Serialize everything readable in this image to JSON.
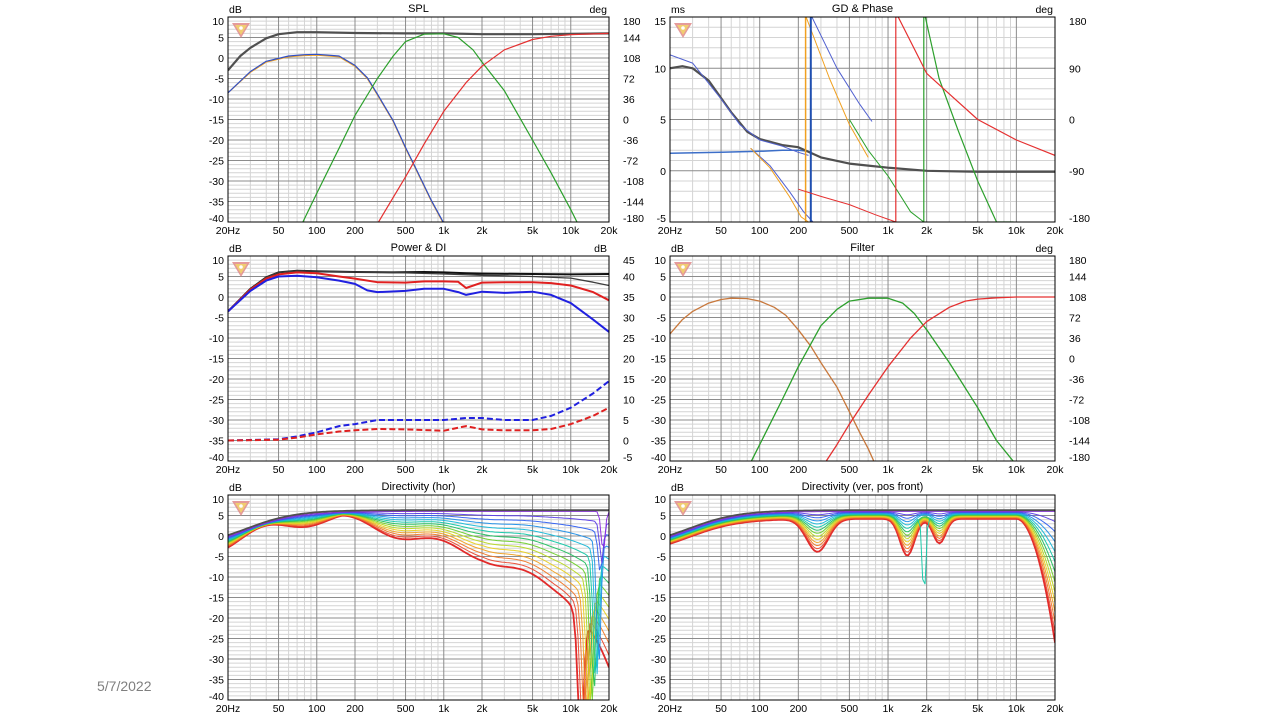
{
  "footer": {
    "date": "5/7/2022"
  },
  "colors": {
    "grid_major": "#8c8c8c",
    "grid_minor": "#d4d4d4",
    "frame": "#000000",
    "logo_red": "#e08a8a",
    "logo_yellow": "#f2d36b"
  },
  "x_ticks": [
    "20Hz",
    "50",
    "100",
    "200",
    "500",
    "1k",
    "2k",
    "5k",
    "10k",
    "20k"
  ],
  "chart_data": [
    {
      "id": "spl",
      "type": "line",
      "title": "SPL",
      "y_unit": "dB",
      "y2_unit": "deg",
      "xlim": [
        20,
        20000
      ],
      "xscale": "log",
      "ylim": [
        -40,
        10
      ],
      "y2lim": [
        -180,
        180
      ],
      "grid": true,
      "y_ticks": [
        "10",
        "5",
        "0",
        "-5",
        "-10",
        "-15",
        "-20",
        "-25",
        "-30",
        "-35",
        "-40"
      ],
      "y2_ticks": [
        "180",
        "144",
        "108",
        "72",
        "36",
        "0",
        "-36",
        "-72",
        "-108",
        "-144",
        "-180"
      ],
      "series": [
        {
          "color": "#505050",
          "width": 2.2,
          "x": [
            20,
            25,
            30,
            40,
            50,
            70,
            100,
            200,
            500,
            1000,
            2000,
            5000,
            10000,
            20000
          ],
          "y": [
            -3,
            0.5,
            2.5,
            4.8,
            5.8,
            6.3,
            6.3,
            6.1,
            6.0,
            6.0,
            5.8,
            5.8,
            5.9,
            6.0
          ]
        },
        {
          "color": "#f0a020",
          "width": 1.2,
          "x": [
            20,
            30,
            40,
            60,
            80,
            100,
            150,
            200,
            250,
            300,
            400,
            500,
            600,
            800,
            1000,
            1100
          ],
          "y": [
            -8.5,
            -3.5,
            -1,
            0.3,
            0.6,
            0.7,
            0.3,
            -2,
            -5,
            -9,
            -15.5,
            -22,
            -27,
            -35,
            -40.5,
            -43
          ]
        },
        {
          "color": "#3050c8",
          "width": 1.2,
          "x": [
            20,
            30,
            40,
            60,
            80,
            100,
            150,
            200,
            250,
            300,
            400,
            500,
            600,
            800,
            1000,
            1100
          ],
          "y": [
            -8.5,
            -3.3,
            -0.8,
            0.5,
            0.8,
            0.9,
            0.5,
            -1.8,
            -4.8,
            -8.8,
            -15.3,
            -21.8,
            -26.8,
            -34.8,
            -40.3,
            -43
          ]
        },
        {
          "color": "#2ca02c",
          "width": 1.2,
          "x": [
            75,
            100,
            150,
            200,
            300,
            400,
            500,
            700,
            1000,
            1300,
            1700,
            2000,
            3000,
            5000,
            7000,
            10000,
            13000
          ],
          "y": [
            -41,
            -33,
            -22,
            -14,
            -5,
            0.5,
            4,
            5.8,
            5.9,
            5,
            2,
            -1,
            -8,
            -20,
            -28,
            -37,
            -44
          ]
        },
        {
          "color": "#e53030",
          "width": 1.2,
          "x": [
            280,
            400,
            500,
            700,
            1000,
            1500,
            2000,
            3000,
            5000,
            7000,
            10000,
            20000
          ],
          "y": [
            -42,
            -34,
            -29,
            -21,
            -13,
            -6,
            -2,
            2,
            4.5,
            5.3,
            5.7,
            6
          ]
        }
      ]
    },
    {
      "id": "gd",
      "type": "line",
      "title": "GD & Phase",
      "y_unit": "ms",
      "y2_unit": "deg",
      "xlim": [
        20,
        20000
      ],
      "xscale": "log",
      "ylim": [
        -5,
        15
      ],
      "y2lim": [
        -180,
        180
      ],
      "grid": true,
      "y_ticks": [
        "15",
        "10",
        "5",
        "0",
        "-5"
      ],
      "y2_ticks": [
        "180",
        "90",
        "0",
        "-90",
        "-180"
      ],
      "series": [
        {
          "color": "#3c6ec8",
          "width": 1.5,
          "x": [
            20,
            50,
            100,
            150,
            200,
            240
          ],
          "y": [
            1.7,
            1.8,
            1.9,
            2.0,
            2.0,
            1.9
          ]
        },
        {
          "color": "#505050",
          "width": 2.2,
          "x": [
            20,
            25,
            30,
            40,
            60,
            80,
            100,
            150,
            200,
            300,
            500,
            700,
            1000,
            2000,
            5000,
            10000,
            20000
          ],
          "y": [
            10,
            10.2,
            10,
            8.8,
            5.7,
            3.8,
            3.1,
            2.5,
            2.3,
            1.3,
            0.7,
            0.5,
            0.3,
            0,
            -0.1,
            -0.1,
            -0.1
          ]
        },
        {
          "color": "#5060d0",
          "width": 1.0,
          "x": [
            20,
            30,
            50,
            70,
            100,
            150,
            200,
            240
          ],
          "y": [
            11.3,
            10.5,
            7,
            4.5,
            3,
            2.4,
            1.8,
            1.5
          ]
        },
        {
          "color": "#5060d0",
          "width": 1.0,
          "x": [
            85,
            120,
            170,
            220,
            260
          ],
          "y": [
            2.2,
            0.5,
            -2,
            -4,
            -5
          ]
        },
        {
          "color": "#5060d0",
          "width": 1.0,
          "x": [
            255,
            400,
            600,
            750
          ],
          "y": [
            15,
            10,
            6.5,
            4.8
          ]
        },
        {
          "color": "#f0a020",
          "width": 1.0,
          "x": [
            85,
            120,
            170,
            210,
            240
          ],
          "y": [
            2.2,
            0.3,
            -2.5,
            -4.5,
            -5
          ]
        },
        {
          "color": "#f0a020",
          "width": 1.0,
          "x": [
            230,
            350,
            500,
            700
          ],
          "y": [
            15,
            9,
            4.5,
            1.3
          ]
        },
        {
          "color": "#1f4fb0",
          "width": 2.0,
          "x": [
            250,
            250,
            258
          ],
          "y": [
            -5,
            15,
            15
          ]
        },
        {
          "color": "#f0a020",
          "width": 1.5,
          "x": [
            228,
            228
          ],
          "y": [
            -5,
            15
          ]
        },
        {
          "color": "#2ca02c",
          "width": 1.2,
          "x": [
            1900,
            1900,
            1950,
            2500,
            3500,
            5000,
            7000,
            9500
          ],
          "y": [
            -5,
            15,
            15,
            9,
            4,
            -1,
            -5,
            -5
          ]
        },
        {
          "color": "#2ca02c",
          "width": 1.0,
          "x": [
            500,
            700,
            1000,
            1500,
            1900
          ],
          "y": [
            5,
            2,
            -0.5,
            -4,
            -5
          ]
        },
        {
          "color": "#e53030",
          "width": 1.2,
          "x": [
            1150,
            1150,
            1200,
            2000,
            3000,
            5000,
            10000,
            20000
          ],
          "y": [
            -5,
            15,
            15,
            9.5,
            7.5,
            5,
            3,
            1.5
          ]
        },
        {
          "color": "#e53030",
          "width": 1.0,
          "x": [
            200,
            300,
            500,
            800,
            1150
          ],
          "y": [
            -1.8,
            -2.5,
            -3.3,
            -4.3,
            -5
          ]
        }
      ]
    },
    {
      "id": "power",
      "type": "line",
      "title": "Power & DI",
      "y_unit": "dB",
      "y2_unit": "dB",
      "xlim": [
        20,
        20000
      ],
      "xscale": "log",
      "ylim": [
        -40,
        10
      ],
      "y2lim": [
        -5,
        45
      ],
      "grid": true,
      "y_ticks": [
        "10",
        "5",
        "0",
        "-5",
        "-10",
        "-15",
        "-20",
        "-25",
        "-30",
        "-35",
        "-40"
      ],
      "y2_ticks": [
        "45",
        "40",
        "35",
        "30",
        "25",
        "20",
        "15",
        "10",
        "5",
        "0",
        "-5"
      ],
      "series": [
        {
          "color": "#111111",
          "width": 2.0,
          "x": [
            20,
            30,
            40,
            50,
            70,
            100,
            200,
            400,
            700,
            1000,
            1500,
            2000,
            5000,
            10000,
            20000
          ],
          "y": [
            -3.5,
            2,
            4.8,
            6,
            6.4,
            6.3,
            6.1,
            6.0,
            6.1,
            6.0,
            5.8,
            5.7,
            5.6,
            5.5,
            5.6
          ]
        },
        {
          "color": "#3d3d3d",
          "width": 1.3,
          "x": [
            20,
            30,
            40,
            50,
            70,
            100,
            200,
            500,
            1000,
            2000,
            5000,
            10000,
            15000,
            20000
          ],
          "y": [
            -3.5,
            2,
            4.8,
            6,
            6.4,
            6.3,
            6.1,
            5.9,
            5.6,
            5.3,
            5.0,
            4.6,
            3.6,
            2.8
          ]
        },
        {
          "color": "#e02020",
          "width": 2.0,
          "x": [
            20,
            30,
            40,
            50,
            70,
            100,
            150,
            200,
            300,
            500,
            700,
            1000,
            1300,
            1500,
            2000,
            3000,
            5000,
            7000,
            10000,
            15000,
            20000
          ],
          "y": [
            -3.5,
            1.8,
            4.5,
            5.5,
            6.0,
            5.8,
            5.0,
            4.5,
            3.6,
            3.5,
            3.8,
            3.8,
            3.7,
            2.2,
            3.5,
            3.6,
            3.6,
            3.4,
            2.8,
            1.2,
            -0.8
          ]
        },
        {
          "color": "#2020e0",
          "width": 2.0,
          "x": [
            20,
            30,
            40,
            50,
            70,
            100,
            150,
            200,
            250,
            300,
            500,
            700,
            1000,
            1300,
            1500,
            2000,
            3000,
            5000,
            7000,
            10000,
            15000,
            20000
          ],
          "y": [
            -3.5,
            1.5,
            4,
            5,
            5.2,
            4.8,
            4,
            3.2,
            1.6,
            1.2,
            1.5,
            2,
            2,
            1.2,
            0.5,
            1.3,
            1,
            1.3,
            0.5,
            -1.5,
            -5.5,
            -8.5
          ]
        },
        {
          "color": "#2020e0",
          "width": 2.0,
          "dashed": true,
          "x": [
            20,
            50,
            70,
            100,
            150,
            200,
            300,
            500,
            1000,
            1500,
            2000,
            3000,
            5000,
            7000,
            10000,
            15000,
            20000
          ],
          "y": [
            -35,
            -34.7,
            -34,
            -33,
            -31.5,
            -31,
            -30,
            -30,
            -30,
            -29.5,
            -29.5,
            -30,
            -30,
            -29,
            -27,
            -23.5,
            -20.5
          ]
        },
        {
          "color": "#e02020",
          "width": 2.0,
          "dashed": true,
          "x": [
            20,
            50,
            70,
            100,
            150,
            200,
            300,
            500,
            1000,
            1500,
            2000,
            3000,
            5000,
            7000,
            10000,
            15000,
            20000
          ],
          "y": [
            -35,
            -34.8,
            -34.3,
            -33.5,
            -32.8,
            -32.5,
            -32.2,
            -32.3,
            -32.6,
            -31.5,
            -32.3,
            -32.5,
            -32.5,
            -32.2,
            -31,
            -29,
            -27
          ]
        }
      ]
    },
    {
      "id": "filter",
      "type": "line",
      "title": "Filter",
      "y_unit": "dB",
      "y2_unit": "deg",
      "xlim": [
        20,
        20000
      ],
      "xscale": "log",
      "ylim": [
        -40,
        10
      ],
      "y2lim": [
        -180,
        180
      ],
      "grid": true,
      "y_ticks": [
        "10",
        "5",
        "0",
        "-5",
        "-10",
        "-15",
        "-20",
        "-25",
        "-30",
        "-35",
        "-40"
      ],
      "y2_ticks": [
        "180",
        "144",
        "108",
        "72",
        "36",
        "0",
        "-36",
        "-72",
        "-108",
        "-144",
        "-180"
      ],
      "series": [
        {
          "color": "#c8783c",
          "width": 1.3,
          "x": [
            20,
            25,
            30,
            40,
            50,
            60,
            80,
            100,
            130,
            160,
            200,
            250,
            300,
            400,
            500,
            600,
            700,
            800
          ],
          "y": [
            -9,
            -5.5,
            -3.5,
            -1.5,
            -0.6,
            -0.3,
            -0.4,
            -1,
            -2.5,
            -4.5,
            -8,
            -12,
            -16,
            -22,
            -28,
            -33,
            -37,
            -41
          ]
        },
        {
          "color": "#2ca02c",
          "width": 1.3,
          "x": [
            80,
            100,
            150,
            200,
            300,
            400,
            500,
            700,
            1000,
            1300,
            1600,
            2000,
            3000,
            5000,
            7000,
            10000
          ],
          "y": [
            -42,
            -36,
            -25,
            -17,
            -7,
            -3,
            -1,
            -0.3,
            -0.3,
            -1.5,
            -4,
            -8,
            -16,
            -27,
            -35,
            -41
          ]
        },
        {
          "color": "#e53030",
          "width": 1.3,
          "x": [
            300,
            400,
            500,
            700,
            1000,
            1500,
            2000,
            3000,
            4000,
            5000,
            7000,
            10000,
            20000
          ],
          "y": [
            -42,
            -36,
            -31,
            -24,
            -17,
            -10,
            -6,
            -2.5,
            -1,
            -0.5,
            -0.2,
            0,
            0
          ]
        }
      ]
    },
    {
      "id": "dir_hor",
      "type": "line",
      "title": "Directivity (hor)",
      "y_unit": "dB",
      "xlim": [
        20,
        20000
      ],
      "xscale": "log",
      "ylim": [
        -40,
        10
      ],
      "grid": true,
      "y_ticks": [
        "10",
        "5",
        "0",
        "-5",
        "-10",
        "-15",
        "-20",
        "-25",
        "-30",
        "-35",
        "-40"
      ],
      "family": {
        "count": 14,
        "kind": "hor",
        "palette": [
          "#8a2be2",
          "#5b3ee6",
          "#2f5ff0",
          "#1f8fe8",
          "#18b8d8",
          "#12c8a8",
          "#22c060",
          "#6ccf2a",
          "#b8d820",
          "#e8d020",
          "#f0a020",
          "#f07828",
          "#ea4a30",
          "#e02020"
        ]
      }
    },
    {
      "id": "dir_ver",
      "type": "line",
      "title": "Directivity (ver, pos front)",
      "y_unit": "dB",
      "xlim": [
        20,
        20000
      ],
      "xscale": "log",
      "ylim": [
        -40,
        10
      ],
      "grid": true,
      "y_ticks": [
        "10",
        "5",
        "0",
        "-5",
        "-10",
        "-15",
        "-20",
        "-25",
        "-30",
        "-35",
        "-40"
      ],
      "family": {
        "count": 14,
        "kind": "ver",
        "palette": [
          "#8a2be2",
          "#5b3ee6",
          "#2f5ff0",
          "#1f8fe8",
          "#18b8d8",
          "#12c8a8",
          "#22c060",
          "#6ccf2a",
          "#b8d820",
          "#e8d020",
          "#f0a020",
          "#f07828",
          "#ea4a30",
          "#e02020"
        ]
      }
    }
  ]
}
